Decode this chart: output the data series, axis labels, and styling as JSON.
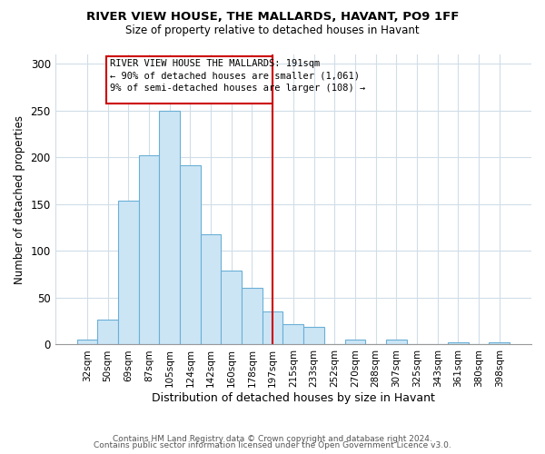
{
  "title": "RIVER VIEW HOUSE, THE MALLARDS, HAVANT, PO9 1FF",
  "subtitle": "Size of property relative to detached houses in Havant",
  "xlabel": "Distribution of detached houses by size in Havant",
  "ylabel": "Number of detached properties",
  "bar_labels": [
    "32sqm",
    "50sqm",
    "69sqm",
    "87sqm",
    "105sqm",
    "124sqm",
    "142sqm",
    "160sqm",
    "178sqm",
    "197sqm",
    "215sqm",
    "233sqm",
    "252sqm",
    "270sqm",
    "288sqm",
    "307sqm",
    "325sqm",
    "343sqm",
    "361sqm",
    "380sqm",
    "398sqm"
  ],
  "bar_values": [
    5,
    27,
    154,
    202,
    250,
    192,
    118,
    79,
    61,
    35,
    22,
    19,
    0,
    5,
    0,
    5,
    0,
    0,
    2,
    0,
    2
  ],
  "bar_color": "#cce5f5",
  "bar_edge_color": "#6aafd6",
  "vline_x_index": 9,
  "vline_color": "#cc0000",
  "annotation_line1": "RIVER VIEW HOUSE THE MALLARDS: 191sqm",
  "annotation_line2": "← 90% of detached houses are smaller (1,061)",
  "annotation_line3": "9% of semi-detached houses are larger (108) →",
  "ylim": [
    0,
    310
  ],
  "yticks": [
    0,
    50,
    100,
    150,
    200,
    250,
    300
  ],
  "footer_line1": "Contains HM Land Registry data © Crown copyright and database right 2024.",
  "footer_line2": "Contains public sector information licensed under the Open Government Licence v3.0.",
  "background_color": "#ffffff",
  "grid_color": "#d0dde8"
}
